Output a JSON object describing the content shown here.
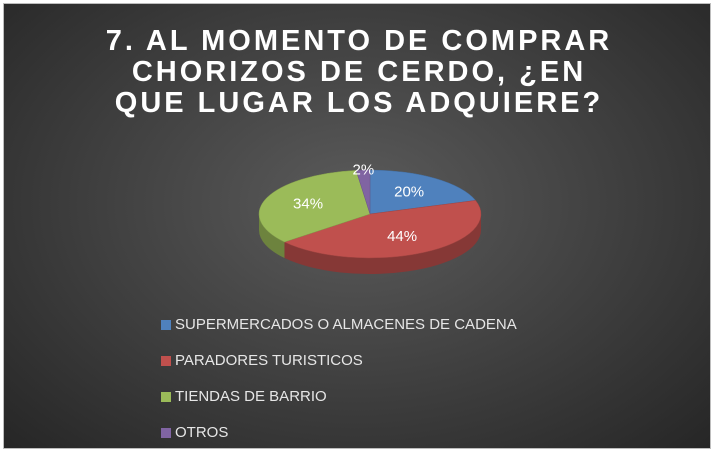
{
  "chart_data": {
    "type": "pie",
    "title": "7. AL MOMENTO DE COMPRAR CHORIZOS DE CERDO, ¿EN QUE LUGAR LOS ADQUIERE?",
    "categories": [
      "SUPERMERCADOS O ALMACENES DE CADENA",
      "PARADORES TURISTICOS",
      "TIENDAS DE BARRIO",
      "OTROS"
    ],
    "values": [
      20,
      44,
      34,
      2
    ],
    "value_labels": [
      "20%",
      "44%",
      "34%",
      "2%"
    ],
    "colors": [
      "#4f81bd",
      "#c0504d",
      "#9bbb59",
      "#8064a2"
    ],
    "legend": "bottom"
  }
}
